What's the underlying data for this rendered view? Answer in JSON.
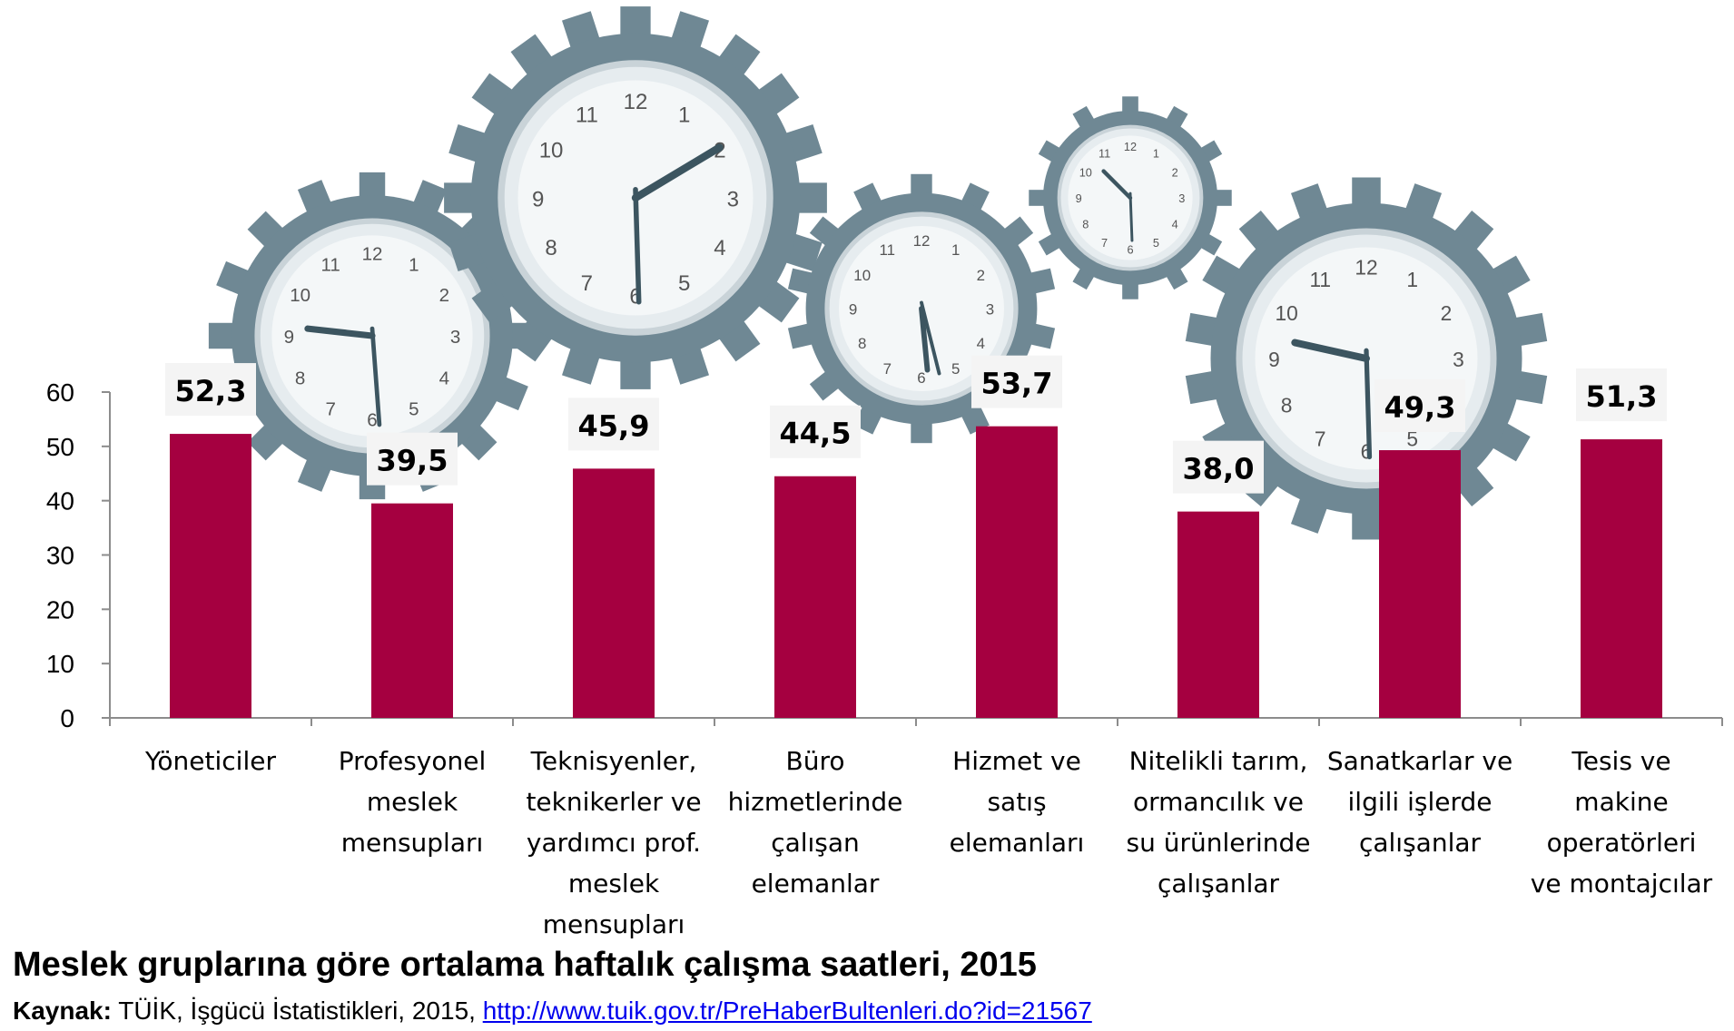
{
  "chart_data": {
    "type": "bar",
    "title": "Meslek gruplarına göre ortalama haftalık çalışma saatleri, 2015",
    "categories": [
      [
        "Yöneticiler"
      ],
      [
        "Profesyonel",
        "meslek",
        "mensupları"
      ],
      [
        "Teknisyenler,",
        "teknikerler ve",
        "yardımcı prof.",
        "meslek",
        "mensupları"
      ],
      [
        "Büro",
        "hizmetlerinde",
        "çalışan",
        "elemanlar"
      ],
      [
        "Hizmet ve",
        "satış",
        "elemanları"
      ],
      [
        "Nitelikli tarım,",
        "ormancılık ve",
        "su ürünlerinde",
        "çalışanlar"
      ],
      [
        "Sanatkarlar ve",
        "ilgili işlerde",
        "çalışanlar"
      ],
      [
        "Tesis ve",
        "makine",
        "operatörleri",
        "ve montajcılar"
      ]
    ],
    "values": [
      52.3,
      39.5,
      45.9,
      44.5,
      53.7,
      38.0,
      49.3,
      51.3
    ],
    "data_labels": [
      "52,3",
      "39,5",
      "45,9",
      "44,5",
      "53,7",
      "38,0",
      "49,3",
      "51,3"
    ],
    "ylim": [
      0,
      60
    ],
    "yticks": [
      0,
      10,
      20,
      30,
      40,
      50,
      60
    ],
    "bar_color": "#a50040",
    "axis_color": "#8c8c8c",
    "gear_color": "#6f8894",
    "clock_face_color": "#e6ecef",
    "grid": false,
    "legend": "none"
  },
  "source": {
    "label": "Kaynak:",
    "text": " TÜİK, İşgücü İstatistikleri, 2015, ",
    "link": "http://www.tuik.gov.tr/PreHaberBultenleri.do?id=21567"
  }
}
